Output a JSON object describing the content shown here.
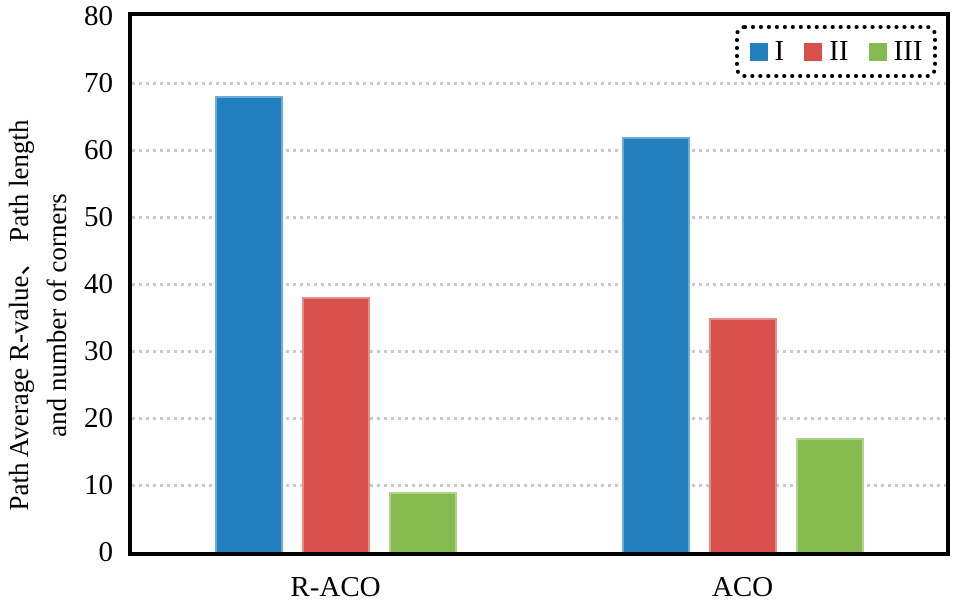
{
  "chart_data": {
    "type": "bar",
    "title": "",
    "categories": [
      "R-ACO",
      "ACO"
    ],
    "series": [
      {
        "name": "I",
        "color": "#2280BF",
        "values": [
          68,
          62
        ]
      },
      {
        "name": "II",
        "color": "#D94F4B",
        "values": [
          38,
          35
        ]
      },
      {
        "name": "III",
        "color": "#85BB4F",
        "values": [
          9,
          17
        ]
      }
    ],
    "ylabel_line1": "Path Average R-value、 Path length",
    "ylabel_line2": "and number of corners",
    "xlabel": "",
    "ylim": [
      0,
      80
    ],
    "yticks": [
      0,
      10,
      20,
      30,
      40,
      50,
      60,
      70,
      80
    ],
    "grid": "horizontal-dotted",
    "gridline_color": "#c9c9c9",
    "axis_color": "#000000",
    "legend": {
      "position": "top-right",
      "entries": [
        "I",
        "II",
        "III"
      ]
    }
  }
}
